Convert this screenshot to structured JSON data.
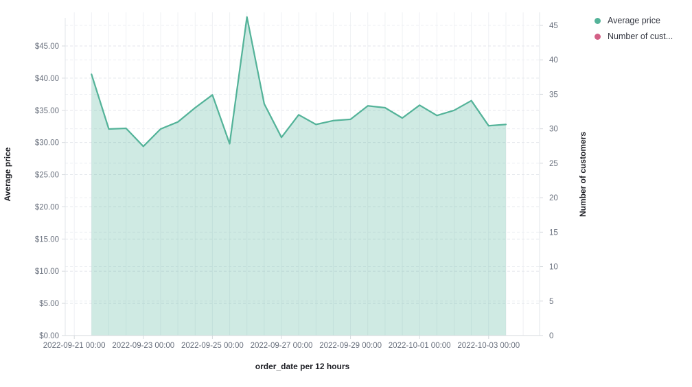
{
  "chart_data": {
    "type": "area",
    "x_label": "order_date per 12 hours",
    "x_tick_labels": [
      "2022-09-21 00:00",
      "2022-09-23 00:00",
      "2022-09-25 00:00",
      "2022-09-27 00:00",
      "2022-09-29 00:00",
      "2022-10-01 00:00",
      "2022-10-03 00:00"
    ],
    "y_left": {
      "title": "Average price",
      "tick_labels": [
        "$0.00",
        "$5.00",
        "$10.00",
        "$15.00",
        "$20.00",
        "$25.00",
        "$30.00",
        "$35.00",
        "$40.00",
        "$45.00"
      ],
      "tick_values": [
        0,
        5,
        10,
        15,
        20,
        25,
        30,
        35,
        40,
        45
      ],
      "range": [
        0,
        50.2
      ]
    },
    "y_right": {
      "title": "Number of customers",
      "tick_labels": [
        "0",
        "5",
        "10",
        "15",
        "20",
        "25",
        "30",
        "35",
        "40",
        "45"
      ],
      "tick_values": [
        0,
        5,
        10,
        15,
        20,
        25,
        30,
        35,
        40,
        45
      ],
      "range": [
        0,
        46.9
      ]
    },
    "grid": {
      "vertical_step": "12 hours",
      "horizontal": "dashed"
    },
    "legend_position": "top-right",
    "series": [
      {
        "name": "Average price",
        "color": "#54B399",
        "axis": "left",
        "x": [
          "2022-09-21 12:00",
          "2022-09-22 00:00",
          "2022-09-22 12:00",
          "2022-09-23 00:00",
          "2022-09-23 12:00",
          "2022-09-24 00:00",
          "2022-09-24 12:00",
          "2022-09-25 00:00",
          "2022-09-25 12:00",
          "2022-09-26 00:00",
          "2022-09-26 12:00",
          "2022-09-27 00:00",
          "2022-09-27 12:00",
          "2022-09-28 00:00",
          "2022-09-28 12:00",
          "2022-09-29 00:00",
          "2022-09-29 12:00",
          "2022-09-30 00:00",
          "2022-09-30 12:00",
          "2022-10-01 00:00",
          "2022-10-01 12:00",
          "2022-10-02 00:00",
          "2022-10-02 12:00",
          "2022-10-03 00:00",
          "2022-10-03 12:00"
        ],
        "values": [
          40.6,
          32.1,
          32.2,
          29.4,
          32.1,
          33.2,
          35.4,
          37.4,
          29.8,
          49.5,
          36.0,
          30.8,
          34.3,
          32.8,
          33.4,
          33.6,
          35.7,
          35.4,
          33.8,
          35.8,
          34.2,
          35.0,
          36.5,
          32.6,
          32.8
        ]
      },
      {
        "name": "Number of cust...",
        "color": "#D36086",
        "axis": "right",
        "values": []
      }
    ]
  },
  "legend": {
    "items": [
      {
        "label": "Average price",
        "color": "#54B399"
      },
      {
        "label": "Number of cust...",
        "color": "#D36086"
      }
    ]
  },
  "axes": {
    "left_title": "Average price",
    "right_title": "Number of customers",
    "x_title": "order_date per 12 hours"
  }
}
